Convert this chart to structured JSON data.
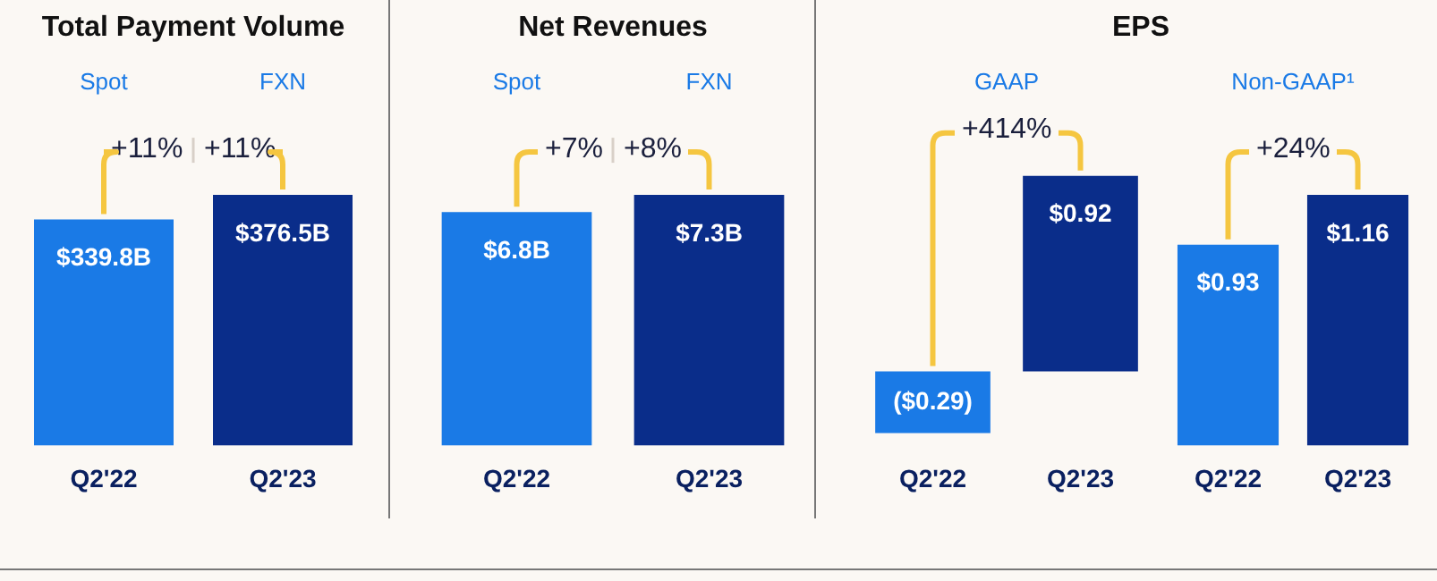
{
  "chart_data": [
    {
      "type": "bar",
      "title": "Total Payment Volume",
      "categories": [
        "Q2'22",
        "Q2'23"
      ],
      "values": [
        339.8,
        376.5
      ],
      "colors": [
        "#1a7ae6",
        "#0a2d8a"
      ],
      "value_labels": [
        "$339.8B",
        "$376.5B"
      ],
      "annotations": [
        "Spot",
        "FXN",
        "+11%",
        "+11%"
      ]
    },
    {
      "type": "bar",
      "title": "Net Revenues",
      "categories": [
        "Q2'22",
        "Q2'23"
      ],
      "values": [
        6.8,
        7.3
      ],
      "colors": [
        "#1a7ae6",
        "#0a2d8a"
      ],
      "value_labels": [
        "$6.8B",
        "$7.3B"
      ],
      "annotations": [
        "Spot",
        "FXN",
        "+7%",
        "+8%"
      ]
    },
    {
      "type": "bar",
      "title": "EPS",
      "subtitle": "GAAP",
      "categories": [
        "Q2'22",
        "Q2'23"
      ],
      "values": [
        -0.29,
        0.92
      ],
      "colors": [
        "#1a7ae6",
        "#0a2d8a"
      ],
      "value_labels": [
        "($0.29)",
        "$0.92"
      ],
      "annotations": [
        "+414%"
      ]
    },
    {
      "type": "bar",
      "subtitle": "Non-GAAP¹",
      "categories": [
        "Q2'22",
        "Q2'23"
      ],
      "values": [
        0.93,
        1.16
      ],
      "colors": [
        "#1a7ae6",
        "#0a2d8a"
      ],
      "value_labels": [
        "$0.93",
        "$1.16"
      ],
      "annotations": [
        "+24%"
      ]
    }
  ]
}
